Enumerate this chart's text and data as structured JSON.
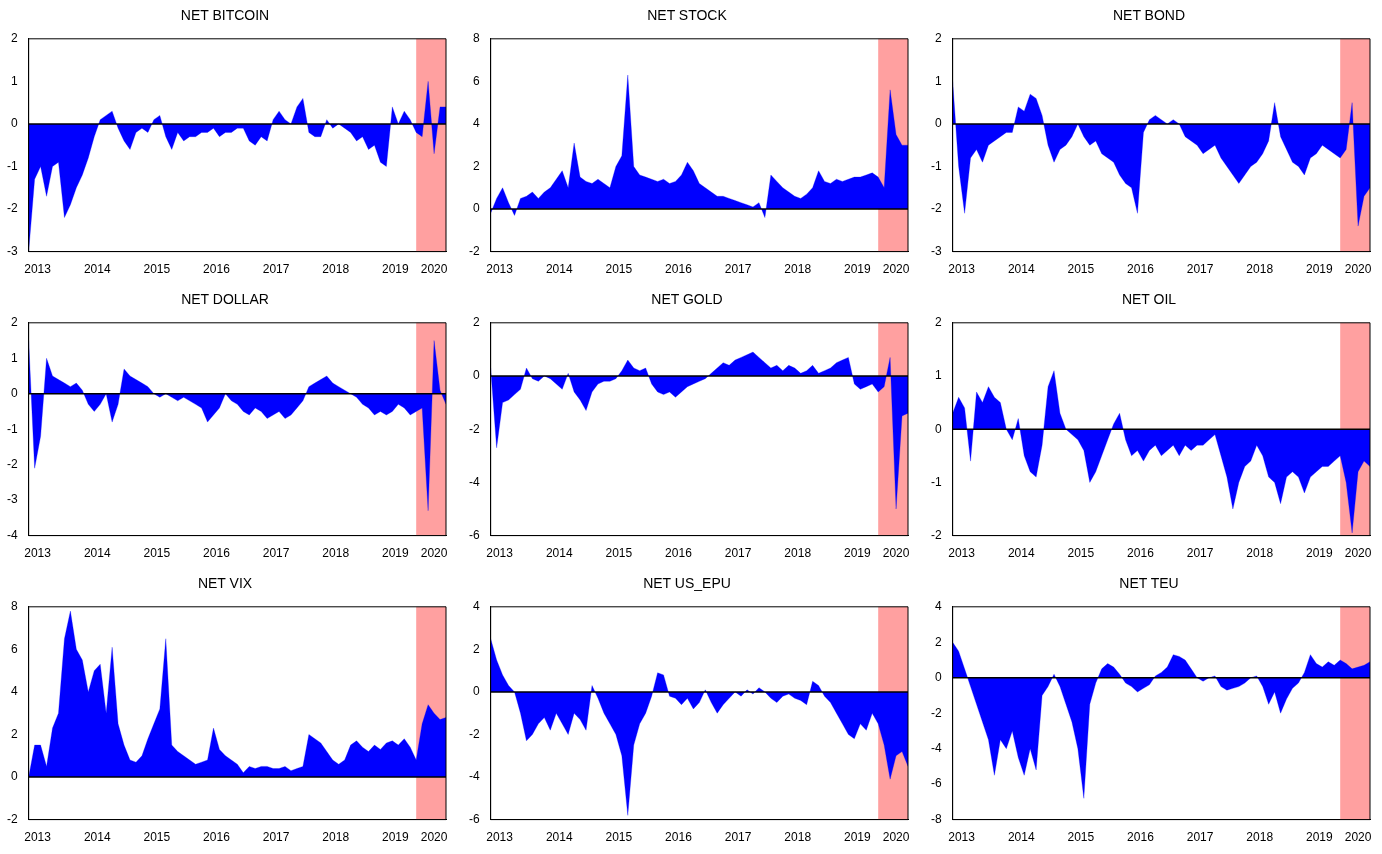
{
  "chart_data": [
    {
      "type": "area",
      "title": "NET BITCOIN",
      "color": "#0000ff",
      "xlim": [
        2013,
        2020
      ],
      "ylim": [
        -3,
        2
      ],
      "yticks": [
        -3,
        -2,
        -1,
        0,
        1,
        2
      ],
      "xticks": [
        {
          "value": 2013.15,
          "label": "2013"
        },
        {
          "value": 2014.15,
          "label": "2014"
        },
        {
          "value": 2015.15,
          "label": "2015"
        },
        {
          "value": 2016.15,
          "label": "2016"
        },
        {
          "value": 2017.15,
          "label": "2017"
        },
        {
          "value": 2018.15,
          "label": "2018"
        },
        {
          "value": 2019.15,
          "label": "2019"
        },
        {
          "value": 2019.8,
          "label": "2020"
        }
      ],
      "bands": [
        {
          "axis": "x",
          "from": 2019.5,
          "to": 2020,
          "color": "#ffa0a0"
        }
      ],
      "ref_lines": [
        {
          "axis": "y",
          "value": 0,
          "color": "#000000"
        }
      ],
      "x": [
        2013.0,
        2013.1,
        2013.2,
        2013.3,
        2013.4,
        2013.5,
        2013.6,
        2013.7,
        2013.8,
        2013.9,
        2014.0,
        2014.1,
        2014.2,
        2014.3,
        2014.4,
        2014.5,
        2014.6,
        2014.7,
        2014.8,
        2014.9,
        2015.0,
        2015.1,
        2015.2,
        2015.3,
        2015.4,
        2015.5,
        2015.6,
        2015.7,
        2015.8,
        2015.9,
        2016.0,
        2016.1,
        2016.2,
        2016.3,
        2016.4,
        2016.5,
        2016.6,
        2016.7,
        2016.8,
        2016.9,
        2017.0,
        2017.1,
        2017.2,
        2017.3,
        2017.4,
        2017.5,
        2017.6,
        2017.7,
        2017.8,
        2017.9,
        2018.0,
        2018.1,
        2018.2,
        2018.3,
        2018.4,
        2018.5,
        2018.6,
        2018.7,
        2018.8,
        2018.9,
        2019.0,
        2019.1,
        2019.2,
        2019.3,
        2019.4,
        2019.5,
        2019.6,
        2019.7,
        2019.8,
        2019.9,
        2020.0
      ],
      "values": [
        -3.0,
        -1.3,
        -1.0,
        -1.7,
        -1.0,
        -0.9,
        -2.2,
        -1.9,
        -1.5,
        -1.2,
        -0.8,
        -0.3,
        0.1,
        0.2,
        0.3,
        -0.1,
        -0.4,
        -0.6,
        -0.2,
        -0.1,
        -0.2,
        0.1,
        0.2,
        -0.3,
        -0.6,
        -0.2,
        -0.4,
        -0.3,
        -0.3,
        -0.2,
        -0.2,
        -0.1,
        -0.3,
        -0.2,
        -0.2,
        -0.1,
        -0.1,
        -0.4,
        -0.5,
        -0.3,
        -0.4,
        0.1,
        0.3,
        0.1,
        0.0,
        0.4,
        0.6,
        -0.2,
        -0.3,
        -0.3,
        0.1,
        -0.1,
        0.0,
        -0.1,
        -0.2,
        -0.4,
        -0.3,
        -0.6,
        -0.5,
        -0.9,
        -1.0,
        0.4,
        0.0,
        0.3,
        0.1,
        -0.2,
        -0.3,
        1.0,
        -0.7,
        0.4,
        0.4
      ]
    },
    {
      "type": "area",
      "title": "NET STOCK",
      "color": "#0000ff",
      "xlim": [
        2013,
        2020
      ],
      "ylim": [
        -2,
        8
      ],
      "yticks": [
        -2,
        0,
        2,
        4,
        6,
        8
      ],
      "xticks": [
        {
          "value": 2013.15,
          "label": "2013"
        },
        {
          "value": 2014.15,
          "label": "2014"
        },
        {
          "value": 2015.15,
          "label": "2015"
        },
        {
          "value": 2016.15,
          "label": "2016"
        },
        {
          "value": 2017.15,
          "label": "2017"
        },
        {
          "value": 2018.15,
          "label": "2018"
        },
        {
          "value": 2019.15,
          "label": "2019"
        },
        {
          "value": 2019.8,
          "label": "2020"
        }
      ],
      "bands": [
        {
          "axis": "x",
          "from": 2019.5,
          "to": 2020,
          "color": "#ffa0a0"
        }
      ],
      "ref_lines": [
        {
          "axis": "y",
          "value": 0,
          "color": "#000000"
        }
      ],
      "x": [
        2013.0,
        2013.1,
        2013.2,
        2013.3,
        2013.4,
        2013.5,
        2013.6,
        2013.7,
        2013.8,
        2013.9,
        2014.0,
        2014.1,
        2014.2,
        2014.3,
        2014.4,
        2014.5,
        2014.6,
        2014.7,
        2014.8,
        2014.9,
        2015.0,
        2015.1,
        2015.2,
        2015.3,
        2015.4,
        2015.5,
        2015.6,
        2015.7,
        2015.8,
        2015.9,
        2016.0,
        2016.1,
        2016.2,
        2016.3,
        2016.4,
        2016.5,
        2016.6,
        2016.7,
        2016.8,
        2016.9,
        2017.0,
        2017.1,
        2017.2,
        2017.3,
        2017.4,
        2017.5,
        2017.6,
        2017.7,
        2017.8,
        2017.9,
        2018.0,
        2018.1,
        2018.2,
        2018.3,
        2018.4,
        2018.5,
        2018.6,
        2018.7,
        2018.8,
        2018.9,
        2019.0,
        2019.1,
        2019.2,
        2019.3,
        2019.4,
        2019.5,
        2019.6,
        2019.7,
        2019.8,
        2019.9,
        2020.0
      ],
      "values": [
        -0.2,
        0.5,
        1.0,
        0.3,
        -0.3,
        0.5,
        0.6,
        0.8,
        0.5,
        0.8,
        1.0,
        1.4,
        1.8,
        1.0,
        3.1,
        1.5,
        1.3,
        1.2,
        1.4,
        1.2,
        1.0,
        2.0,
        2.5,
        6.3,
        2.0,
        1.6,
        1.5,
        1.4,
        1.3,
        1.4,
        1.2,
        1.3,
        1.6,
        2.2,
        1.8,
        1.2,
        1.0,
        0.8,
        0.6,
        0.6,
        0.5,
        0.4,
        0.3,
        0.2,
        0.1,
        0.3,
        -0.4,
        1.6,
        1.3,
        1.0,
        0.8,
        0.6,
        0.5,
        0.7,
        1.0,
        1.8,
        1.3,
        1.2,
        1.4,
        1.3,
        1.4,
        1.5,
        1.5,
        1.6,
        1.7,
        1.5,
        1.0,
        5.6,
        3.5,
        3.0,
        3.0
      ]
    },
    {
      "type": "area",
      "title": "NET BOND",
      "color": "#0000ff",
      "xlim": [
        2013,
        2020
      ],
      "ylim": [
        -3,
        2
      ],
      "yticks": [
        -3,
        -2,
        -1,
        0,
        1,
        2
      ],
      "xticks": [
        {
          "value": 2013.15,
          "label": "2013"
        },
        {
          "value": 2014.15,
          "label": "2014"
        },
        {
          "value": 2015.15,
          "label": "2015"
        },
        {
          "value": 2016.15,
          "label": "2016"
        },
        {
          "value": 2017.15,
          "label": "2017"
        },
        {
          "value": 2018.15,
          "label": "2018"
        },
        {
          "value": 2019.15,
          "label": "2019"
        },
        {
          "value": 2019.8,
          "label": "2020"
        }
      ],
      "bands": [
        {
          "axis": "x",
          "from": 2019.5,
          "to": 2020,
          "color": "#ffa0a0"
        }
      ],
      "ref_lines": [
        {
          "axis": "y",
          "value": 0,
          "color": "#000000"
        }
      ],
      "x": [
        2013.0,
        2013.1,
        2013.2,
        2013.3,
        2013.4,
        2013.5,
        2013.6,
        2013.7,
        2013.8,
        2013.9,
        2014.0,
        2014.1,
        2014.2,
        2014.3,
        2014.4,
        2014.5,
        2014.6,
        2014.7,
        2014.8,
        2014.9,
        2015.0,
        2015.1,
        2015.2,
        2015.3,
        2015.4,
        2015.5,
        2015.6,
        2015.7,
        2015.8,
        2015.9,
        2016.0,
        2016.1,
        2016.2,
        2016.3,
        2016.4,
        2016.5,
        2016.6,
        2016.7,
        2016.8,
        2016.9,
        2017.0,
        2017.1,
        2017.2,
        2017.3,
        2017.4,
        2017.5,
        2017.6,
        2017.7,
        2017.8,
        2017.9,
        2018.0,
        2018.1,
        2018.2,
        2018.3,
        2018.4,
        2018.5,
        2018.6,
        2018.7,
        2018.8,
        2018.9,
        2019.0,
        2019.1,
        2019.2,
        2019.3,
        2019.4,
        2019.5,
        2019.6,
        2019.7,
        2019.8,
        2019.9,
        2020.0
      ],
      "values": [
        1.0,
        -1.0,
        -2.1,
        -0.8,
        -0.6,
        -0.9,
        -0.5,
        -0.4,
        -0.3,
        -0.2,
        -0.2,
        0.4,
        0.3,
        0.7,
        0.6,
        0.2,
        -0.5,
        -0.9,
        -0.6,
        -0.5,
        -0.3,
        0.0,
        -0.3,
        -0.5,
        -0.4,
        -0.7,
        -0.8,
        -0.9,
        -1.2,
        -1.4,
        -1.5,
        -2.1,
        -0.2,
        0.1,
        0.2,
        0.1,
        0.0,
        0.1,
        0.0,
        -0.3,
        -0.4,
        -0.5,
        -0.7,
        -0.6,
        -0.5,
        -0.8,
        -1.0,
        -1.2,
        -1.4,
        -1.2,
        -1.0,
        -0.9,
        -0.7,
        -0.4,
        0.5,
        -0.3,
        -0.6,
        -0.9,
        -1.0,
        -1.2,
        -0.8,
        -0.7,
        -0.5,
        -0.6,
        -0.7,
        -0.8,
        -0.6,
        0.5,
        -2.4,
        -1.7,
        -1.5
      ]
    },
    {
      "type": "area",
      "title": "NET DOLLAR",
      "color": "#0000ff",
      "xlim": [
        2013,
        2020
      ],
      "ylim": [
        -4,
        2
      ],
      "yticks": [
        -4,
        -3,
        -2,
        -1,
        0,
        1,
        2
      ],
      "xticks": [
        {
          "value": 2013.15,
          "label": "2013"
        },
        {
          "value": 2014.15,
          "label": "2014"
        },
        {
          "value": 2015.15,
          "label": "2015"
        },
        {
          "value": 2016.15,
          "label": "2016"
        },
        {
          "value": 2017.15,
          "label": "2017"
        },
        {
          "value": 2018.15,
          "label": "2018"
        },
        {
          "value": 2019.15,
          "label": "2019"
        },
        {
          "value": 2019.8,
          "label": "2020"
        }
      ],
      "bands": [
        {
          "axis": "x",
          "from": 2019.5,
          "to": 2020,
          "color": "#ffa0a0"
        }
      ],
      "ref_lines": [
        {
          "axis": "y",
          "value": 0,
          "color": "#000000"
        }
      ],
      "x": [
        2013.0,
        2013.1,
        2013.2,
        2013.3,
        2013.4,
        2013.5,
        2013.6,
        2013.7,
        2013.8,
        2013.9,
        2014.0,
        2014.1,
        2014.2,
        2014.3,
        2014.4,
        2014.5,
        2014.6,
        2014.7,
        2014.8,
        2014.9,
        2015.0,
        2015.1,
        2015.2,
        2015.3,
        2015.4,
        2015.5,
        2015.6,
        2015.7,
        2015.8,
        2015.9,
        2016.0,
        2016.1,
        2016.2,
        2016.3,
        2016.4,
        2016.5,
        2016.6,
        2016.7,
        2016.8,
        2016.9,
        2017.0,
        2017.1,
        2017.2,
        2017.3,
        2017.4,
        2017.5,
        2017.6,
        2017.7,
        2017.8,
        2017.9,
        2018.0,
        2018.1,
        2018.2,
        2018.3,
        2018.4,
        2018.5,
        2018.6,
        2018.7,
        2018.8,
        2018.9,
        2019.0,
        2019.1,
        2019.2,
        2019.3,
        2019.4,
        2019.5,
        2019.6,
        2019.7,
        2019.8,
        2019.9,
        2020.0
      ],
      "values": [
        1.5,
        -2.1,
        -1.2,
        1.0,
        0.5,
        0.4,
        0.3,
        0.2,
        0.3,
        0.1,
        -0.3,
        -0.5,
        -0.3,
        0.0,
        -0.8,
        -0.3,
        0.7,
        0.5,
        0.4,
        0.3,
        0.2,
        0.0,
        -0.1,
        0.0,
        -0.1,
        -0.2,
        -0.1,
        -0.2,
        -0.3,
        -0.4,
        -0.8,
        -0.6,
        -0.4,
        0.0,
        -0.2,
        -0.3,
        -0.5,
        -0.6,
        -0.4,
        -0.5,
        -0.7,
        -0.6,
        -0.5,
        -0.7,
        -0.6,
        -0.4,
        -0.2,
        0.2,
        0.3,
        0.4,
        0.5,
        0.3,
        0.2,
        0.1,
        0.0,
        -0.1,
        -0.3,
        -0.4,
        -0.6,
        -0.5,
        -0.6,
        -0.5,
        -0.3,
        -0.4,
        -0.6,
        -0.5,
        -0.4,
        -3.3,
        1.5,
        0.1,
        -0.3
      ]
    },
    {
      "type": "area",
      "title": "NET GOLD",
      "color": "#0000ff",
      "xlim": [
        2013,
        2020
      ],
      "ylim": [
        -6,
        2
      ],
      "yticks": [
        -6,
        -4,
        -2,
        0,
        2
      ],
      "xticks": [
        {
          "value": 2013.15,
          "label": "2013"
        },
        {
          "value": 2014.15,
          "label": "2014"
        },
        {
          "value": 2015.15,
          "label": "2015"
        },
        {
          "value": 2016.15,
          "label": "2016"
        },
        {
          "value": 2017.15,
          "label": "2017"
        },
        {
          "value": 2018.15,
          "label": "2018"
        },
        {
          "value": 2019.15,
          "label": "2019"
        },
        {
          "value": 2019.8,
          "label": "2020"
        }
      ],
      "bands": [
        {
          "axis": "x",
          "from": 2019.5,
          "to": 2020,
          "color": "#ffa0a0"
        }
      ],
      "ref_lines": [
        {
          "axis": "y",
          "value": 0,
          "color": "#000000"
        }
      ],
      "x": [
        2013.0,
        2013.1,
        2013.2,
        2013.3,
        2013.4,
        2013.5,
        2013.6,
        2013.7,
        2013.8,
        2013.9,
        2014.0,
        2014.1,
        2014.2,
        2014.3,
        2014.4,
        2014.5,
        2014.6,
        2014.7,
        2014.8,
        2014.9,
        2015.0,
        2015.1,
        2015.2,
        2015.3,
        2015.4,
        2015.5,
        2015.6,
        2015.7,
        2015.8,
        2015.9,
        2016.0,
        2016.1,
        2016.2,
        2016.3,
        2016.4,
        2016.5,
        2016.6,
        2016.7,
        2016.8,
        2016.9,
        2017.0,
        2017.1,
        2017.2,
        2017.3,
        2017.4,
        2017.5,
        2017.6,
        2017.7,
        2017.8,
        2017.9,
        2018.0,
        2018.1,
        2018.2,
        2018.3,
        2018.4,
        2018.5,
        2018.6,
        2018.7,
        2018.8,
        2018.9,
        2019.0,
        2019.1,
        2019.2,
        2019.3,
        2019.4,
        2019.5,
        2019.6,
        2019.7,
        2019.8,
        2019.9,
        2020.0
      ],
      "values": [
        0.3,
        -2.7,
        -1.0,
        -0.9,
        -0.7,
        -0.5,
        0.3,
        -0.1,
        -0.2,
        0.0,
        -0.1,
        -0.3,
        -0.5,
        0.1,
        -0.6,
        -0.9,
        -1.3,
        -0.6,
        -0.3,
        -0.2,
        -0.2,
        -0.1,
        0.2,
        0.6,
        0.3,
        0.2,
        0.3,
        -0.3,
        -0.6,
        -0.7,
        -0.6,
        -0.8,
        -0.6,
        -0.4,
        -0.3,
        -0.2,
        -0.1,
        0.1,
        0.3,
        0.5,
        0.4,
        0.6,
        0.7,
        0.8,
        0.9,
        0.7,
        0.5,
        0.3,
        0.4,
        0.2,
        0.4,
        0.3,
        0.1,
        0.2,
        0.4,
        0.1,
        0.2,
        0.3,
        0.5,
        0.6,
        0.7,
        -0.3,
        -0.5,
        -0.4,
        -0.3,
        -0.6,
        -0.4,
        0.7,
        -5.0,
        -1.5,
        -1.4
      ]
    },
    {
      "type": "area",
      "title": "NET OIL",
      "color": "#0000ff",
      "xlim": [
        2013,
        2020
      ],
      "ylim": [
        -2,
        2
      ],
      "yticks": [
        -2,
        -1,
        0,
        1,
        2
      ],
      "xticks": [
        {
          "value": 2013.15,
          "label": "2013"
        },
        {
          "value": 2014.15,
          "label": "2014"
        },
        {
          "value": 2015.15,
          "label": "2015"
        },
        {
          "value": 2016.15,
          "label": "2016"
        },
        {
          "value": 2017.15,
          "label": "2017"
        },
        {
          "value": 2018.15,
          "label": "2018"
        },
        {
          "value": 2019.15,
          "label": "2019"
        },
        {
          "value": 2019.8,
          "label": "2020"
        }
      ],
      "bands": [
        {
          "axis": "x",
          "from": 2019.5,
          "to": 2020,
          "color": "#ffa0a0"
        }
      ],
      "ref_lines": [
        {
          "axis": "y",
          "value": 0,
          "color": "#000000"
        }
      ],
      "x": [
        2013.0,
        2013.1,
        2013.2,
        2013.3,
        2013.4,
        2013.5,
        2013.6,
        2013.7,
        2013.8,
        2013.9,
        2014.0,
        2014.1,
        2014.2,
        2014.3,
        2014.4,
        2014.5,
        2014.6,
        2014.7,
        2014.8,
        2014.9,
        2015.0,
        2015.1,
        2015.2,
        2015.3,
        2015.4,
        2015.5,
        2015.6,
        2015.7,
        2015.8,
        2015.9,
        2016.0,
        2016.1,
        2016.2,
        2016.3,
        2016.4,
        2016.5,
        2016.6,
        2016.7,
        2016.8,
        2016.9,
        2017.0,
        2017.1,
        2017.2,
        2017.3,
        2017.4,
        2017.5,
        2017.6,
        2017.7,
        2017.8,
        2017.9,
        2018.0,
        2018.1,
        2018.2,
        2018.3,
        2018.4,
        2018.5,
        2018.6,
        2018.7,
        2018.8,
        2018.9,
        2019.0,
        2019.1,
        2019.2,
        2019.3,
        2019.4,
        2019.5,
        2019.6,
        2019.7,
        2019.8,
        2019.9,
        2020.0
      ],
      "values": [
        0.3,
        0.6,
        0.4,
        -0.6,
        0.7,
        0.5,
        0.8,
        0.6,
        0.5,
        0.0,
        -0.2,
        0.2,
        -0.5,
        -0.8,
        -0.9,
        -0.3,
        0.8,
        1.1,
        0.3,
        0.0,
        -0.1,
        -0.2,
        -0.4,
        -1.0,
        -0.8,
        -0.5,
        -0.2,
        0.1,
        0.3,
        -0.2,
        -0.5,
        -0.4,
        -0.6,
        -0.4,
        -0.3,
        -0.5,
        -0.4,
        -0.3,
        -0.5,
        -0.3,
        -0.4,
        -0.3,
        -0.3,
        -0.2,
        -0.1,
        -0.5,
        -0.9,
        -1.5,
        -1.0,
        -0.7,
        -0.6,
        -0.3,
        -0.5,
        -0.9,
        -1.0,
        -1.4,
        -0.9,
        -0.8,
        -0.9,
        -1.2,
        -0.9,
        -0.8,
        -0.7,
        -0.7,
        -0.6,
        -0.5,
        -1.0,
        -1.95,
        -0.8,
        -0.6,
        -0.7
      ]
    },
    {
      "type": "area",
      "title": "NET VIX",
      "color": "#0000ff",
      "xlim": [
        2013,
        2020
      ],
      "ylim": [
        -2,
        8
      ],
      "yticks": [
        -2,
        0,
        2,
        4,
        6,
        8
      ],
      "xticks": [
        {
          "value": 2013.15,
          "label": "2013"
        },
        {
          "value": 2014.15,
          "label": "2014"
        },
        {
          "value": 2015.15,
          "label": "2015"
        },
        {
          "value": 2016.15,
          "label": "2016"
        },
        {
          "value": 2017.15,
          "label": "2017"
        },
        {
          "value": 2018.15,
          "label": "2018"
        },
        {
          "value": 2019.15,
          "label": "2019"
        },
        {
          "value": 2019.8,
          "label": "2020"
        }
      ],
      "bands": [
        {
          "axis": "x",
          "from": 2019.5,
          "to": 2020,
          "color": "#ffa0a0"
        }
      ],
      "ref_lines": [
        {
          "axis": "y",
          "value": 0,
          "color": "#000000"
        }
      ],
      "x": [
        2013.0,
        2013.1,
        2013.2,
        2013.3,
        2013.4,
        2013.5,
        2013.6,
        2013.7,
        2013.8,
        2013.9,
        2014.0,
        2014.1,
        2014.2,
        2014.3,
        2014.4,
        2014.5,
        2014.6,
        2014.7,
        2014.8,
        2014.9,
        2015.0,
        2015.1,
        2015.2,
        2015.3,
        2015.4,
        2015.5,
        2015.6,
        2015.7,
        2015.8,
        2015.9,
        2016.0,
        2016.1,
        2016.2,
        2016.3,
        2016.4,
        2016.5,
        2016.6,
        2016.7,
        2016.8,
        2016.9,
        2017.0,
        2017.1,
        2017.2,
        2017.3,
        2017.4,
        2017.5,
        2017.6,
        2017.7,
        2017.8,
        2017.9,
        2018.0,
        2018.1,
        2018.2,
        2018.3,
        2018.4,
        2018.5,
        2018.6,
        2018.7,
        2018.8,
        2018.9,
        2019.0,
        2019.1,
        2019.2,
        2019.3,
        2019.4,
        2019.5,
        2019.6,
        2019.7,
        2019.8,
        2019.9,
        2020.0
      ],
      "values": [
        0.0,
        1.5,
        1.5,
        0.5,
        2.3,
        3.0,
        6.5,
        7.8,
        6.0,
        5.5,
        4.0,
        5.0,
        5.3,
        3.0,
        6.1,
        2.5,
        1.5,
        0.8,
        0.7,
        1.0,
        1.8,
        2.5,
        3.2,
        6.5,
        1.5,
        1.2,
        1.0,
        0.8,
        0.6,
        0.7,
        0.8,
        2.3,
        1.3,
        1.0,
        0.8,
        0.6,
        0.2,
        0.5,
        0.4,
        0.5,
        0.5,
        0.4,
        0.4,
        0.5,
        0.3,
        0.4,
        0.5,
        2.0,
        1.8,
        1.6,
        1.2,
        0.8,
        0.6,
        0.8,
        1.5,
        1.7,
        1.4,
        1.2,
        1.5,
        1.3,
        1.6,
        1.7,
        1.5,
        1.8,
        1.4,
        0.8,
        2.5,
        3.4,
        3.0,
        2.7,
        2.8
      ]
    },
    {
      "type": "area",
      "title": "NET US_EPU",
      "color": "#0000ff",
      "xlim": [
        2013,
        2020
      ],
      "ylim": [
        -6,
        4
      ],
      "yticks": [
        -6,
        -4,
        -2,
        0,
        2,
        4
      ],
      "xticks": [
        {
          "value": 2013.15,
          "label": "2013"
        },
        {
          "value": 2014.15,
          "label": "2014"
        },
        {
          "value": 2015.15,
          "label": "2015"
        },
        {
          "value": 2016.15,
          "label": "2016"
        },
        {
          "value": 2017.15,
          "label": "2017"
        },
        {
          "value": 2018.15,
          "label": "2018"
        },
        {
          "value": 2019.15,
          "label": "2019"
        },
        {
          "value": 2019.8,
          "label": "2020"
        }
      ],
      "bands": [
        {
          "axis": "x",
          "from": 2019.5,
          "to": 2020,
          "color": "#ffa0a0"
        }
      ],
      "ref_lines": [
        {
          "axis": "y",
          "value": 0,
          "color": "#000000"
        }
      ],
      "x": [
        2013.0,
        2013.1,
        2013.2,
        2013.3,
        2013.4,
        2013.5,
        2013.6,
        2013.7,
        2013.8,
        2013.9,
        2014.0,
        2014.1,
        2014.2,
        2014.3,
        2014.4,
        2014.5,
        2014.6,
        2014.7,
        2014.8,
        2014.9,
        2015.0,
        2015.1,
        2015.2,
        2015.3,
        2015.4,
        2015.5,
        2015.6,
        2015.7,
        2015.8,
        2015.9,
        2016.0,
        2016.1,
        2016.2,
        2016.3,
        2016.4,
        2016.5,
        2016.6,
        2016.7,
        2016.8,
        2016.9,
        2017.0,
        2017.1,
        2017.2,
        2017.3,
        2017.4,
        2017.5,
        2017.6,
        2017.7,
        2017.8,
        2017.9,
        2018.0,
        2018.1,
        2018.2,
        2018.3,
        2018.4,
        2018.5,
        2018.6,
        2018.7,
        2018.8,
        2018.9,
        2019.0,
        2019.1,
        2019.2,
        2019.3,
        2019.4,
        2019.5,
        2019.6,
        2019.7,
        2019.8,
        2019.9,
        2020.0
      ],
      "values": [
        2.5,
        1.5,
        0.8,
        0.3,
        0.0,
        -1.0,
        -2.3,
        -2.0,
        -1.5,
        -1.2,
        -1.8,
        -1.0,
        -1.5,
        -2.0,
        -1.0,
        -1.3,
        -1.8,
        0.3,
        -0.3,
        -1.0,
        -1.5,
        -2.0,
        -3.0,
        -5.8,
        -2.5,
        -1.5,
        -1.0,
        -0.2,
        0.9,
        0.8,
        -0.2,
        -0.3,
        -0.6,
        -0.3,
        -0.8,
        -0.5,
        0.1,
        -0.5,
        -1.0,
        -0.6,
        -0.3,
        0.0,
        -0.2,
        0.1,
        -0.1,
        0.2,
        0.0,
        -0.3,
        -0.5,
        -0.2,
        -0.1,
        -0.3,
        -0.4,
        -0.6,
        0.5,
        0.3,
        -0.2,
        -0.5,
        -1.0,
        -1.5,
        -2.0,
        -2.2,
        -1.5,
        -1.8,
        -1.0,
        -1.5,
        -2.5,
        -4.1,
        -3.0,
        -2.8,
        -3.5
      ]
    },
    {
      "type": "area",
      "title": "NET TEU",
      "color": "#0000ff",
      "xlim": [
        2013,
        2020
      ],
      "ylim": [
        -8,
        4
      ],
      "yticks": [
        -8,
        -6,
        -4,
        -2,
        0,
        2,
        4
      ],
      "xticks": [
        {
          "value": 2013.15,
          "label": "2013"
        },
        {
          "value": 2014.15,
          "label": "2014"
        },
        {
          "value": 2015.15,
          "label": "2015"
        },
        {
          "value": 2016.15,
          "label": "2016"
        },
        {
          "value": 2017.15,
          "label": "2017"
        },
        {
          "value": 2018.15,
          "label": "2018"
        },
        {
          "value": 2019.15,
          "label": "2019"
        },
        {
          "value": 2019.8,
          "label": "2020"
        }
      ],
      "bands": [
        {
          "axis": "x",
          "from": 2019.5,
          "to": 2020,
          "color": "#ffa0a0"
        }
      ],
      "ref_lines": [
        {
          "axis": "y",
          "value": 0,
          "color": "#000000"
        }
      ],
      "x": [
        2013.0,
        2013.1,
        2013.2,
        2013.3,
        2013.4,
        2013.5,
        2013.6,
        2013.7,
        2013.8,
        2013.9,
        2014.0,
        2014.1,
        2014.2,
        2014.3,
        2014.4,
        2014.5,
        2014.6,
        2014.7,
        2014.8,
        2014.9,
        2015.0,
        2015.1,
        2015.2,
        2015.3,
        2015.4,
        2015.5,
        2015.6,
        2015.7,
        2015.8,
        2015.9,
        2016.0,
        2016.1,
        2016.2,
        2016.3,
        2016.4,
        2016.5,
        2016.6,
        2016.7,
        2016.8,
        2016.9,
        2017.0,
        2017.1,
        2017.2,
        2017.3,
        2017.4,
        2017.5,
        2017.6,
        2017.7,
        2017.8,
        2017.9,
        2018.0,
        2018.1,
        2018.2,
        2018.3,
        2018.4,
        2018.5,
        2018.6,
        2018.7,
        2018.8,
        2018.9,
        2019.0,
        2019.1,
        2019.2,
        2019.3,
        2019.4,
        2019.5,
        2019.6,
        2019.7,
        2019.8,
        2019.9,
        2020.0
      ],
      "values": [
        2.0,
        1.5,
        0.5,
        -0.5,
        -1.5,
        -2.5,
        -3.5,
        -5.5,
        -3.5,
        -4.0,
        -3.0,
        -4.5,
        -5.5,
        -4.0,
        -5.2,
        -1.0,
        -0.5,
        0.2,
        -0.5,
        -1.5,
        -2.5,
        -4.0,
        -6.8,
        -1.5,
        -0.3,
        0.5,
        0.8,
        0.6,
        0.2,
        -0.3,
        -0.5,
        -0.8,
        -0.6,
        -0.4,
        0.1,
        0.3,
        0.6,
        1.3,
        1.2,
        1.0,
        0.5,
        0.0,
        -0.2,
        0.0,
        0.1,
        -0.5,
        -0.7,
        -0.6,
        -0.5,
        -0.3,
        0.0,
        0.1,
        -0.5,
        -1.5,
        -0.8,
        -2.0,
        -1.2,
        -0.6,
        -0.3,
        0.3,
        1.3,
        0.8,
        0.6,
        0.9,
        0.7,
        1.0,
        0.8,
        0.5,
        0.6,
        0.7,
        0.9
      ]
    }
  ]
}
